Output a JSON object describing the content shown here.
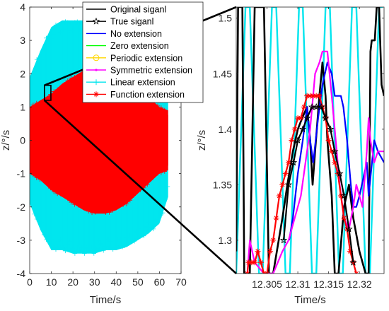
{
  "chart_data": [
    {
      "type": "line",
      "panel": "full-signal",
      "xlabel": "Time/s",
      "ylabel": "z/°/s",
      "xlim": [
        0,
        70
      ],
      "ylim": [
        -4,
        4
      ],
      "x_ticks": [
        0,
        10,
        20,
        30,
        40,
        50,
        60,
        70
      ],
      "y_ticks": [
        -4,
        -3,
        -2,
        -1,
        0,
        1,
        2,
        3,
        4
      ],
      "grid": false,
      "legend_position": "top-right",
      "legend": [
        {
          "label": "Original siganl",
          "color": "#000000",
          "marker": "none"
        },
        {
          "label": "True siganl",
          "color": "#000000",
          "marker": "star"
        },
        {
          "label": "No extension",
          "color": "#0000ff",
          "marker": "none"
        },
        {
          "label": "Zero extension",
          "color": "#00ff00",
          "marker": "none"
        },
        {
          "label": "Periodic extension",
          "color": "#ffd700",
          "marker": "circle"
        },
        {
          "label": "Symmetric extension",
          "color": "#ff00ff",
          "marker": "point"
        },
        {
          "label": "Linear extension",
          "color": "#00e5ee",
          "marker": "plus"
        },
        {
          "label": "Function extension",
          "color": "#ff0000",
          "marker": "asterisk"
        }
      ],
      "envelopes": [
        {
          "name": "Linear extension",
          "color": "#00e5ee",
          "x": [
            0,
            5,
            10,
            15,
            20,
            25,
            30,
            35,
            40,
            45,
            50,
            55,
            60,
            64
          ],
          "upper": [
            1.9,
            2.7,
            3.4,
            3.6,
            3.6,
            3.6,
            3.6,
            3.5,
            3.5,
            3.3,
            3.1,
            2.8,
            2.5,
            1.7
          ],
          "lower": [
            -1.9,
            -2.7,
            -3.3,
            -3.3,
            -3.4,
            -3.4,
            -3.4,
            -3.3,
            -3.3,
            -3.2,
            -3.0,
            -2.8,
            -2.5,
            -1.7
          ]
        },
        {
          "name": "Function extension",
          "color": "#ff0000",
          "x": [
            0,
            5,
            10,
            15,
            20,
            25,
            30,
            35,
            40,
            45,
            50,
            55,
            60,
            64
          ],
          "upper": [
            1.0,
            1.2,
            1.4,
            1.7,
            1.9,
            2.1,
            2.2,
            2.2,
            2.1,
            1.9,
            1.6,
            1.3,
            1.0,
            0.9
          ],
          "lower": [
            -1.0,
            -1.2,
            -1.5,
            -1.7,
            -1.9,
            -2.1,
            -2.2,
            -2.2,
            -2.1,
            -1.9,
            -1.6,
            -1.3,
            -1.0,
            -0.9
          ]
        }
      ],
      "zoom_box": {
        "x": [
          6.8,
          9.8
        ],
        "y": [
          1.2,
          1.65
        ]
      }
    },
    {
      "type": "line",
      "panel": "zoom",
      "xlabel": "Time/s",
      "ylabel": "z/°/s",
      "xlim": [
        12.3,
        12.324
      ],
      "ylim": [
        1.27,
        1.51
      ],
      "x_ticks": [
        12.305,
        12.31,
        12.315,
        12.32
      ],
      "x_tick_labels": [
        "12.305",
        "12.31",
        "12.315",
        "12.32"
      ],
      "y_ticks": [
        1.3,
        1.35,
        1.4,
        1.45,
        1.5
      ],
      "y_tick_labels": [
        "1.3",
        "1.35",
        "1.4",
        "1.45",
        "1.5"
      ],
      "grid": false,
      "series": [
        {
          "name": "Linear extension",
          "color": "#00e5ee",
          "x": [
            12.3,
            12.3015,
            12.3022,
            12.3037,
            12.3043,
            12.3058,
            12.3065,
            12.308,
            12.3087,
            12.3102,
            12.3108,
            12.3123,
            12.313,
            12.3145,
            12.3152,
            12.3167,
            12.3173,
            12.3188,
            12.3195,
            12.321,
            12.3217,
            12.3232,
            12.3238
          ],
          "y": [
            1.27,
            1.51,
            1.51,
            1.27,
            1.27,
            1.51,
            1.51,
            1.27,
            1.27,
            1.51,
            1.51,
            1.27,
            1.27,
            1.51,
            1.51,
            1.27,
            1.27,
            1.51,
            1.51,
            1.27,
            1.27,
            1.51,
            1.51
          ]
        },
        {
          "name": "Original siganl",
          "color": "#000000",
          "x": [
            12.3,
            12.3003,
            12.301,
            12.3013,
            12.3022,
            12.303,
            12.3045,
            12.3053,
            12.306,
            12.3075,
            12.3083,
            12.3092,
            12.31,
            12.3107,
            12.3115,
            12.312,
            12.3124,
            12.3128,
            12.3135,
            12.314,
            12.3145,
            12.3148,
            12.3155,
            12.316,
            12.3166,
            12.3175,
            12.3183,
            12.319,
            12.32,
            12.321,
            12.3215,
            12.3218,
            12.322,
            12.3225,
            12.3228,
            12.3232,
            12.3236,
            12.324
          ],
          "y": [
            1.29,
            1.51,
            1.51,
            1.27,
            1.27,
            1.51,
            1.51,
            1.27,
            1.27,
            1.32,
            1.35,
            1.38,
            1.4,
            1.41,
            1.42,
            1.39,
            1.35,
            1.38,
            1.43,
            1.46,
            1.43,
            1.39,
            1.34,
            1.27,
            1.27,
            1.33,
            1.35,
            1.32,
            1.29,
            1.27,
            1.27,
            1.47,
            1.48,
            1.48,
            1.51,
            1.51,
            1.44,
            1.43
          ]
        },
        {
          "name": "No extension",
          "color": "#0000ff",
          "x": [
            12.3086,
            12.3092,
            12.31,
            12.3108,
            12.3115,
            12.312,
            12.3125,
            12.3133,
            12.314,
            12.3148,
            12.3155,
            12.316,
            12.3166,
            12.317,
            12.3174,
            12.318,
            12.3186,
            12.319,
            12.3195,
            12.32,
            12.3212,
            12.3215,
            12.3224,
            12.323,
            12.324
          ],
          "y": [
            1.3,
            1.32,
            1.36,
            1.39,
            1.42,
            1.39,
            1.37,
            1.41,
            1.44,
            1.46,
            1.45,
            1.43,
            1.43,
            1.43,
            1.42,
            1.39,
            1.35,
            1.33,
            1.33,
            1.34,
            1.37,
            1.34,
            1.39,
            1.38,
            1.37
          ]
        },
        {
          "name": "Symmetric extension",
          "color": "#ff00ff",
          "x": [
            12.3018,
            12.3022,
            12.3026,
            12.303,
            12.3045,
            12.306,
            12.3075,
            12.3085,
            12.3095,
            12.3105,
            12.3115,
            12.312,
            12.3128,
            12.3135,
            12.314,
            12.3148,
            12.3155,
            12.316,
            12.3168,
            12.3175,
            12.3183,
            12.319,
            12.3195,
            12.32,
            12.3205,
            12.3212,
            12.3215,
            12.3218,
            12.3224,
            12.323,
            12.3234,
            12.324
          ],
          "y": [
            1.27,
            1.3,
            1.29,
            1.28,
            1.27,
            1.27,
            1.29,
            1.3,
            1.32,
            1.34,
            1.38,
            1.4,
            1.45,
            1.46,
            1.47,
            1.47,
            1.43,
            1.4,
            1.35,
            1.32,
            1.31,
            1.33,
            1.35,
            1.34,
            1.33,
            1.38,
            1.41,
            1.39,
            1.37,
            1.38,
            1.38,
            1.38
          ]
        },
        {
          "name": "Function extension",
          "color": "#ff0000",
          "x": [
            12.3018,
            12.302,
            12.3025,
            12.303,
            12.3035,
            12.304,
            12.3045,
            12.305,
            12.3055,
            12.306,
            12.3065,
            12.307,
            12.3075,
            12.308,
            12.3085,
            12.309,
            12.3095,
            12.31,
            12.3105,
            12.311,
            12.3115,
            12.312,
            12.3125,
            12.313,
            12.3135,
            12.314,
            12.3145,
            12.315,
            12.3155,
            12.316,
            12.3165,
            12.317,
            12.3175,
            12.318,
            12.3185,
            12.319,
            12.3195
          ],
          "y": [
            1.27,
            1.28,
            1.28,
            1.28,
            1.29,
            1.28,
            1.27,
            1.27,
            1.29,
            1.3,
            1.32,
            1.34,
            1.35,
            1.36,
            1.37,
            1.39,
            1.4,
            1.41,
            1.41,
            1.42,
            1.43,
            1.43,
            1.43,
            1.43,
            1.43,
            1.42,
            1.41,
            1.39,
            1.38,
            1.37,
            1.36,
            1.34,
            1.32,
            1.31,
            1.29,
            1.28,
            1.27
          ]
        },
        {
          "name": "True siganl",
          "color": "#000000",
          "marker": "star",
          "x": [
            12.3077,
            12.3085,
            12.3093,
            12.31,
            12.3108,
            12.3115,
            12.3123,
            12.313,
            12.3138,
            12.3145,
            12.3153,
            12.316,
            12.3168,
            12.3175,
            12.3183,
            12.319
          ],
          "y": [
            1.3,
            1.35,
            1.37,
            1.39,
            1.4,
            1.41,
            1.42,
            1.42,
            1.42,
            1.41,
            1.4,
            1.38,
            1.36,
            1.34,
            1.31,
            1.28
          ]
        }
      ]
    }
  ]
}
